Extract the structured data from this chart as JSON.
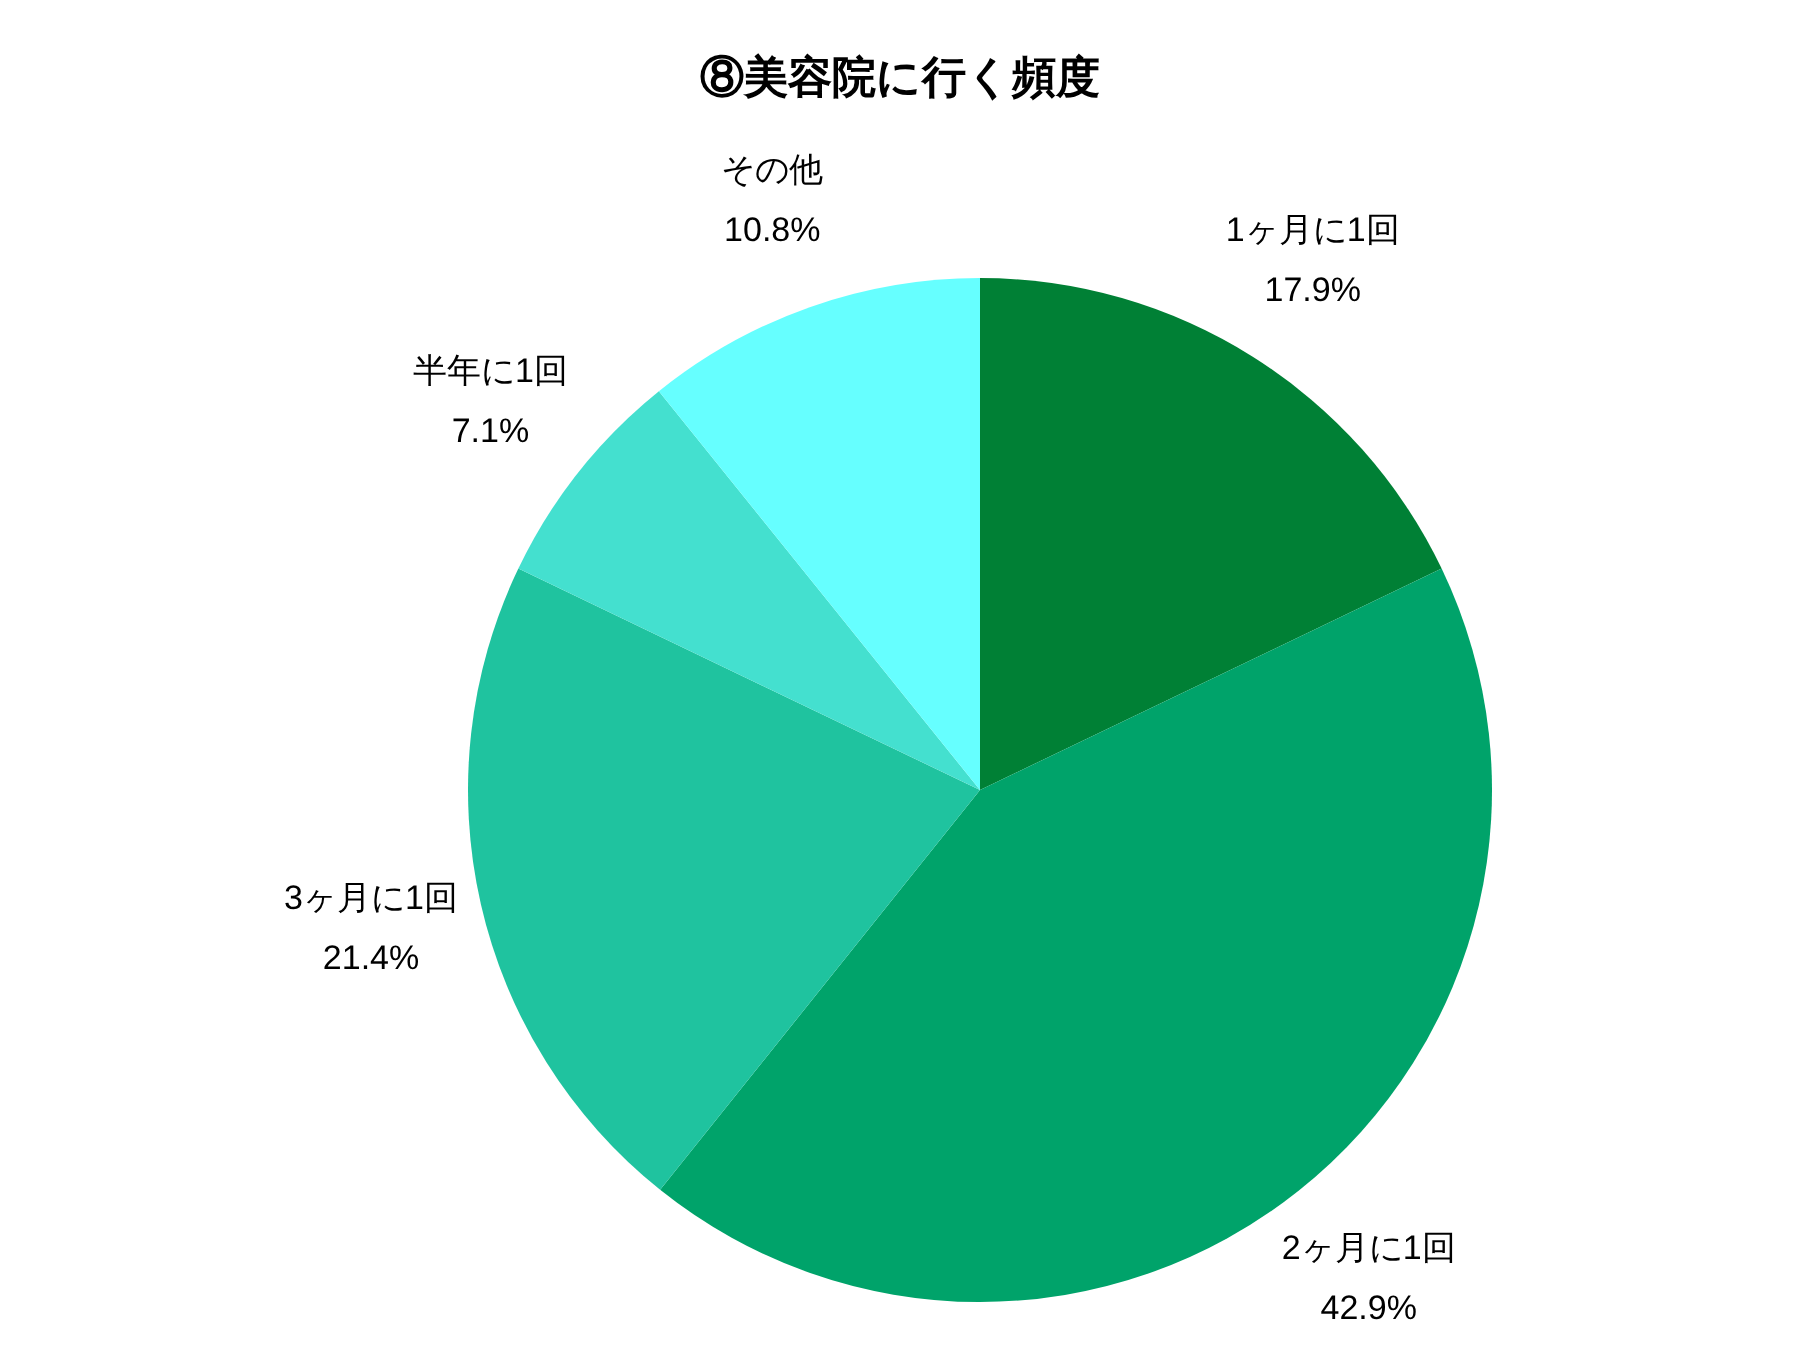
{
  "chart_data": {
    "type": "pie",
    "title": "⑧美容院に行く頻度",
    "categories": [
      "1ヶ月に1回",
      "2ヶ月に1回",
      "3ヶ月に1回",
      "半年に1回",
      "その他"
    ],
    "values": [
      17.9,
      42.9,
      21.4,
      7.1,
      10.8
    ],
    "value_labels": [
      "17.9%",
      "42.9%",
      "21.4%",
      "7.1%",
      "10.8%"
    ],
    "colors": [
      "#008035",
      "#00a36a",
      "#1fc39f",
      "#44e0cf",
      "#66ffff"
    ],
    "legend": false
  }
}
